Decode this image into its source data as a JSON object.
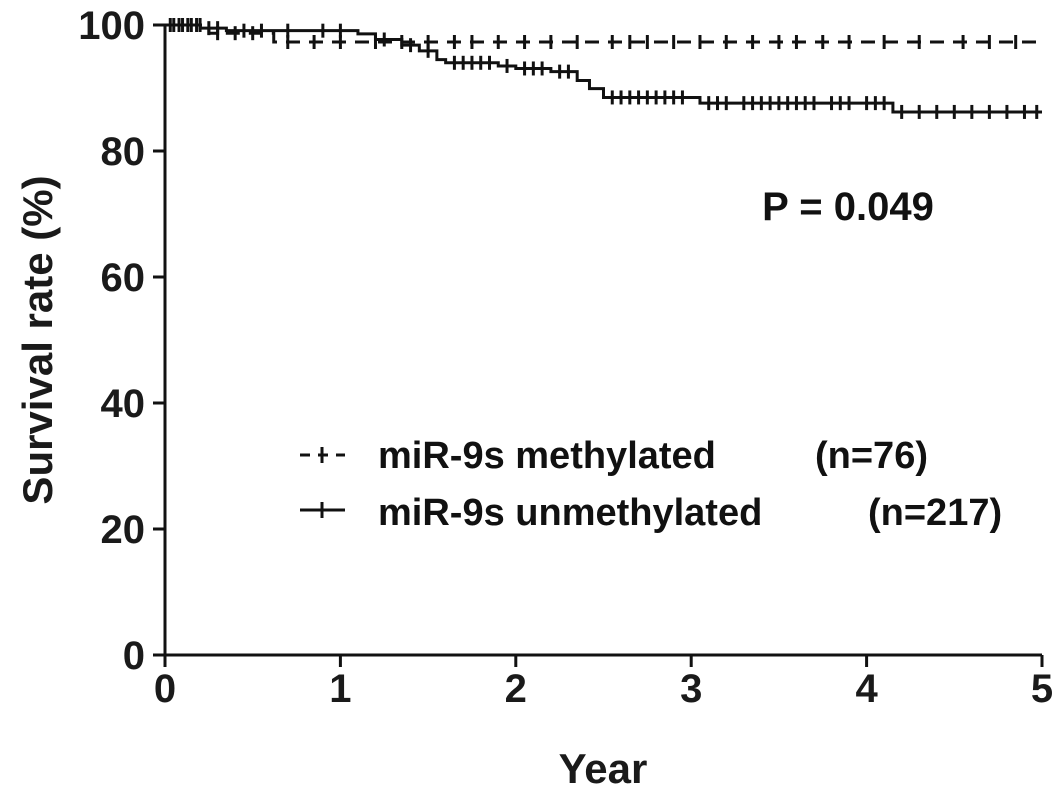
{
  "chart_data": {
    "type": "line",
    "subtype": "kaplan-meier",
    "xlabel": "Year",
    "ylabel": "Survival rate (%)",
    "xlim": [
      0,
      5
    ],
    "ylim": [
      0,
      100
    ],
    "xticks": [
      0,
      1,
      2,
      3,
      4,
      5
    ],
    "yticks": [
      0,
      20,
      40,
      60,
      80,
      100
    ],
    "grid": false,
    "legend_position": "center-right",
    "annotation": "P = 0.049",
    "series": [
      {
        "name": "miR-9s methylated",
        "count_label": "(n=76)",
        "style": "dashed",
        "color": "#111111",
        "steps": [
          [
            0,
            100
          ],
          [
            0.25,
            98.7
          ],
          [
            0.62,
            97.3
          ],
          [
            5,
            97.3
          ]
        ],
        "censored": [
          0.05,
          0.1,
          0.15,
          0.2,
          0.3,
          0.4,
          0.5,
          0.7,
          0.85,
          1.0,
          1.2,
          1.35,
          1.5,
          1.65,
          1.75,
          1.9,
          2.05,
          2.2,
          2.35,
          2.55,
          2.65,
          2.75,
          2.9,
          3.05,
          3.2,
          3.35,
          3.5,
          3.6,
          3.75,
          3.9,
          4.1,
          4.3,
          4.55,
          4.7,
          4.85
        ]
      },
      {
        "name": "miR-9s unmethylated",
        "count_label": "(n=217)",
        "style": "solid",
        "color": "#111111",
        "steps": [
          [
            0,
            100
          ],
          [
            0.2,
            99.5
          ],
          [
            0.35,
            99.1
          ],
          [
            1.1,
            98.6
          ],
          [
            1.2,
            97.7
          ],
          [
            1.35,
            96.8
          ],
          [
            1.45,
            95.9
          ],
          [
            1.55,
            94.5
          ],
          [
            1.6,
            94.0
          ],
          [
            1.9,
            93.5
          ],
          [
            2.0,
            93.1
          ],
          [
            2.2,
            92.6
          ],
          [
            2.35,
            91.2
          ],
          [
            2.42,
            89.9
          ],
          [
            2.5,
            88.5
          ],
          [
            3.05,
            87.6
          ],
          [
            4.15,
            86.2
          ],
          [
            5,
            86.2
          ]
        ],
        "censored": [
          0.03,
          0.08,
          0.13,
          0.18,
          0.25,
          0.3,
          0.45,
          0.55,
          0.7,
          0.9,
          1.0,
          1.25,
          1.4,
          1.5,
          1.65,
          1.7,
          1.75,
          1.8,
          1.85,
          1.95,
          2.05,
          2.1,
          2.15,
          2.25,
          2.3,
          2.55,
          2.6,
          2.65,
          2.7,
          2.75,
          2.8,
          2.85,
          2.9,
          2.95,
          3.1,
          3.15,
          3.2,
          3.3,
          3.35,
          3.4,
          3.45,
          3.5,
          3.55,
          3.6,
          3.65,
          3.7,
          3.8,
          3.85,
          3.9,
          4.0,
          4.05,
          4.1,
          4.2,
          4.3,
          4.4,
          4.5,
          4.6,
          4.7,
          4.8,
          4.9,
          4.97
        ]
      }
    ]
  }
}
